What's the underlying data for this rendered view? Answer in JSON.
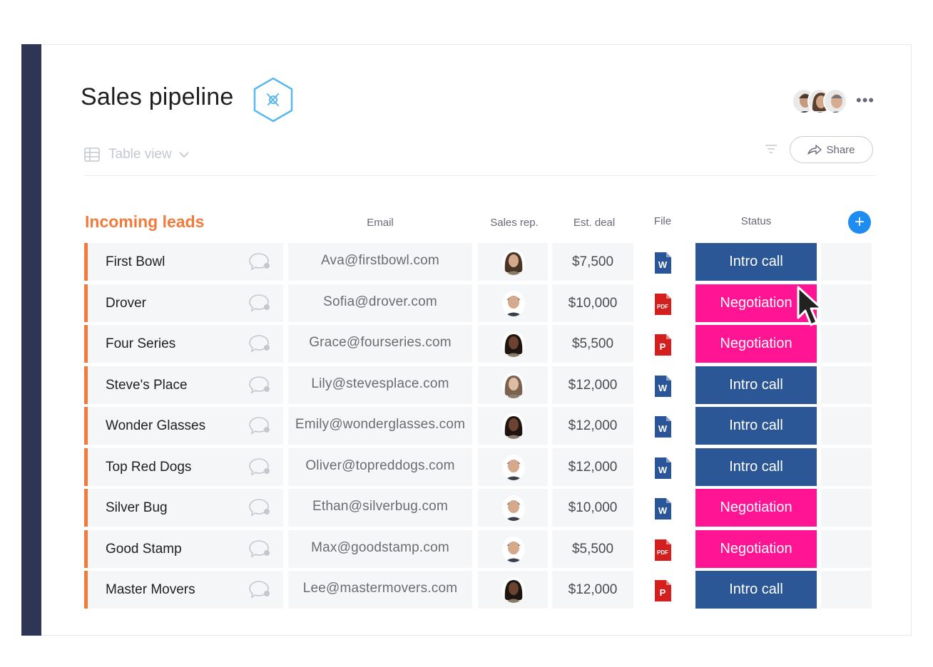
{
  "board": {
    "title": "Sales pipeline",
    "view_label": "Table view",
    "share_label": "Share",
    "more_label": "•••",
    "add_column_label": "+"
  },
  "colors": {
    "group": "#f27a3a",
    "intro_call": "#2b5797",
    "negotiation": "#ff1493",
    "word": "#2a5699",
    "pdf": "#d41f1f"
  },
  "group": {
    "title": "Incoming leads",
    "columns": {
      "email": "Email",
      "sales_rep": "Sales rep.",
      "est_deal": "Est. deal",
      "file": "File",
      "status": "Status"
    }
  },
  "rows": [
    {
      "name": "First Bowl",
      "email": "Ava@firstbowl.com",
      "deal": "$7,500",
      "file": "word",
      "file_label": "W",
      "status": "Intro call",
      "status_type": "intro",
      "rep": "female"
    },
    {
      "name": "Drover",
      "email": "Sofia@drover.com",
      "deal": "$10,000",
      "file": "pdf-doc",
      "file_label": "PDF",
      "status": "Negotiation",
      "status_type": "neg",
      "rep": "male"
    },
    {
      "name": "Four Series",
      "email": "Grace@fourseries.com",
      "deal": "$5,500",
      "file": "pdf",
      "file_label": "P",
      "status": "Negotiation",
      "status_type": "neg",
      "rep": "female-dark"
    },
    {
      "name": "Steve's Place",
      "email": "Lily@stevesplace.com",
      "deal": "$12,000",
      "file": "word",
      "file_label": "W",
      "status": "Intro call",
      "status_type": "intro",
      "rep": "female-light"
    },
    {
      "name": "Wonder Glasses",
      "email": "Emily@wonderglasses.com",
      "deal": "$12,000",
      "file": "word",
      "file_label": "W",
      "status": "Intro call",
      "status_type": "intro",
      "rep": "female-dark"
    },
    {
      "name": "Top Red Dogs",
      "email": "Oliver@topreddogs.com",
      "deal": "$12,000",
      "file": "word",
      "file_label": "W",
      "status": "Intro call",
      "status_type": "intro",
      "rep": "male"
    },
    {
      "name": "Silver Bug",
      "email": "Ethan@silverbug.com",
      "deal": "$10,000",
      "file": "word",
      "file_label": "W",
      "status": "Negotiation",
      "status_type": "neg",
      "rep": "male"
    },
    {
      "name": "Good Stamp",
      "email": "Max@goodstamp.com",
      "deal": "$5,500",
      "file": "pdf-doc",
      "file_label": "PDF",
      "status": "Negotiation",
      "status_type": "neg",
      "rep": "male"
    },
    {
      "name": "Master Movers",
      "email": "Lee@mastermovers.com",
      "deal": "$12,000",
      "file": "pdf",
      "file_label": "P",
      "status": "Intro call",
      "status_type": "intro",
      "rep": "female-dark"
    }
  ]
}
